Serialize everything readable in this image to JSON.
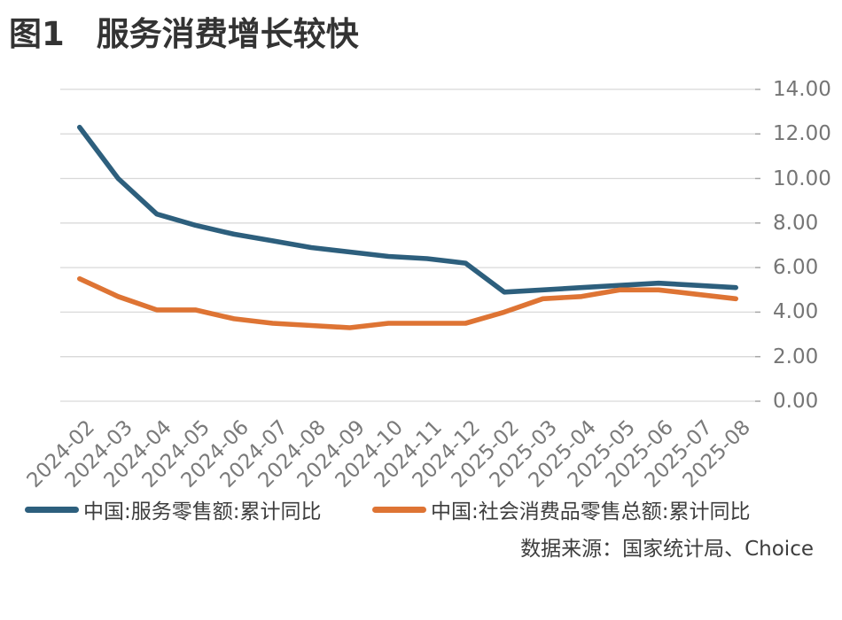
{
  "title": {
    "figure_label": "图1",
    "text": "服务消费增长较快"
  },
  "chart_data": {
    "type": "line",
    "title": "图1 服务消费增长较快",
    "categories": [
      "2024-02",
      "2024-03",
      "2024-04",
      "2024-05",
      "2024-06",
      "2024-07",
      "2024-08",
      "2024-09",
      "2024-10",
      "2024-11",
      "2024-12",
      "2025-02",
      "2025-03",
      "2025-04",
      "2025-05",
      "2025-06",
      "2025-07",
      "2025-08"
    ],
    "series": [
      {
        "name": "中国:服务零售额:累计同比",
        "color": "#2D5F7D",
        "values": [
          12.3,
          10.0,
          8.4,
          7.9,
          7.5,
          7.2,
          6.9,
          6.7,
          6.5,
          6.4,
          6.2,
          4.9,
          5.0,
          5.1,
          5.2,
          5.3,
          5.2,
          5.1
        ]
      },
      {
        "name": "中国:社会消费品零售总额:累计同比",
        "color": "#DE7434",
        "values": [
          5.5,
          4.7,
          4.1,
          4.1,
          3.7,
          3.5,
          3.4,
          3.3,
          3.5,
          3.5,
          3.5,
          4.0,
          4.6,
          4.7,
          5.0,
          5.0,
          4.8,
          4.6
        ]
      }
    ],
    "ylim": [
      0,
      14
    ],
    "ytick_step": 2,
    "ytick_labels": [
      "0.00",
      "2.00",
      "4.00",
      "6.00",
      "8.00",
      "10.00",
      "12.00",
      "14.00"
    ],
    "xlabel": "",
    "ylabel": "",
    "grid": "horizontal",
    "legend_position": "bottom",
    "y_axis_side": "right"
  },
  "colors": {
    "grid_line": "#D9D9D9",
    "tick_mark": "#A6A6A6",
    "axis_text": "#757575",
    "title_text": "#333333",
    "body_text": "#3D3D3D"
  },
  "footer": {
    "source": "数据来源：国家统计局、Choice"
  }
}
